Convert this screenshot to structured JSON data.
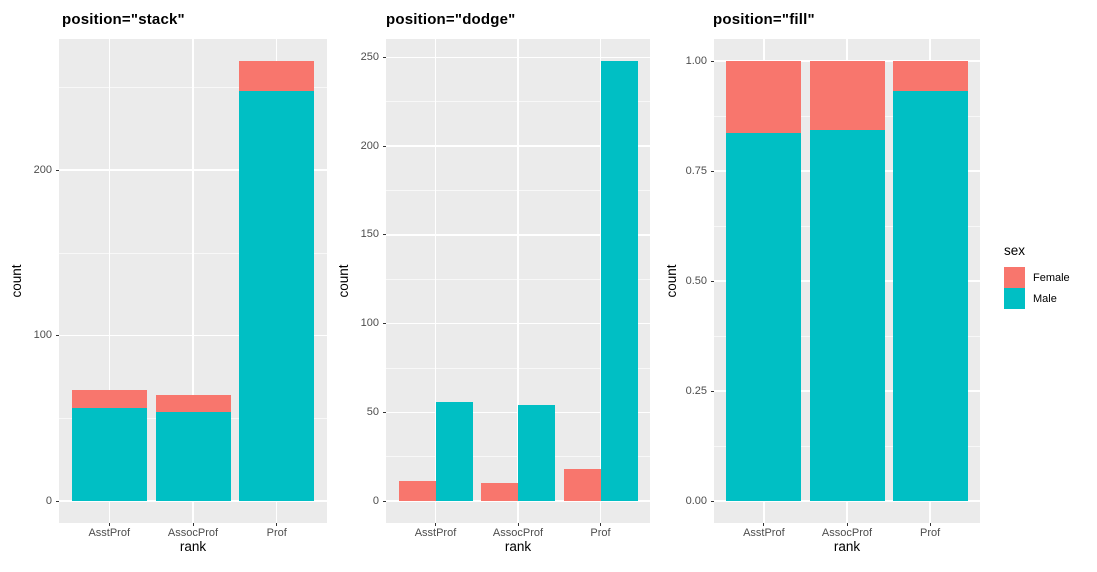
{
  "colors": {
    "female": "#F8766D",
    "male": "#00BFC4",
    "panel_background": "#EBEBEB",
    "gridline": "#FFFFFF",
    "tick_label_text": "#4D4D4D",
    "axis_title_text": "#000000"
  },
  "legend": {
    "title": "sex",
    "position": "right",
    "entries": [
      {
        "label": "Female",
        "color": "#F8766D"
      },
      {
        "label": "Male",
        "color": "#00BFC4"
      }
    ]
  },
  "chart_data": [
    {
      "type": "bar",
      "position": "stack",
      "title": "position=\"stack\"",
      "xlabel": "rank",
      "ylabel": "count",
      "categories": [
        "AsstProf",
        "AssocProf",
        "Prof"
      ],
      "series": [
        {
          "name": "Female",
          "color": "#F8766D",
          "values": [
            11,
            10,
            18
          ]
        },
        {
          "name": "Male",
          "color": "#00BFC4",
          "values": [
            56,
            54,
            248
          ]
        }
      ],
      "ylim": [
        0,
        266
      ],
      "y_ticks": [
        {
          "value": 0,
          "label": "0"
        },
        {
          "value": 100,
          "label": "100"
        },
        {
          "value": 200,
          "label": "200"
        }
      ],
      "y_minor": [
        50,
        150,
        250
      ],
      "grid": true
    },
    {
      "type": "bar",
      "position": "dodge",
      "title": "position=\"dodge\"",
      "xlabel": "rank",
      "ylabel": "count",
      "categories": [
        "AsstProf",
        "AssocProf",
        "Prof"
      ],
      "series": [
        {
          "name": "Female",
          "color": "#F8766D",
          "values": [
            11,
            10,
            18
          ]
        },
        {
          "name": "Male",
          "color": "#00BFC4",
          "values": [
            56,
            54,
            248
          ]
        }
      ],
      "ylim": [
        0,
        248
      ],
      "y_ticks": [
        {
          "value": 0,
          "label": "0"
        },
        {
          "value": 50,
          "label": "50"
        },
        {
          "value": 100,
          "label": "100"
        },
        {
          "value": 150,
          "label": "150"
        },
        {
          "value": 200,
          "label": "200"
        },
        {
          "value": 250,
          "label": "250"
        }
      ],
      "y_minor": [
        25,
        75,
        125,
        175,
        225
      ],
      "grid": true
    },
    {
      "type": "bar",
      "position": "fill",
      "title": "position=\"fill\"",
      "xlabel": "rank",
      "ylabel": "count",
      "categories": [
        "AsstProf",
        "AssocProf",
        "Prof"
      ],
      "series": [
        {
          "name": "Female",
          "color": "#F8766D",
          "values": [
            11,
            10,
            18
          ]
        },
        {
          "name": "Male",
          "color": "#00BFC4",
          "values": [
            56,
            54,
            248
          ]
        }
      ],
      "ylim": [
        0,
        1
      ],
      "y_ticks": [
        {
          "value": 0,
          "label": "0.00"
        },
        {
          "value": 0.25,
          "label": "0.25"
        },
        {
          "value": 0.5,
          "label": "0.50"
        },
        {
          "value": 0.75,
          "label": "0.75"
        },
        {
          "value": 1,
          "label": "1.00"
        }
      ],
      "y_minor": [
        0.125,
        0.375,
        0.625,
        0.875
      ],
      "grid": true
    }
  ]
}
